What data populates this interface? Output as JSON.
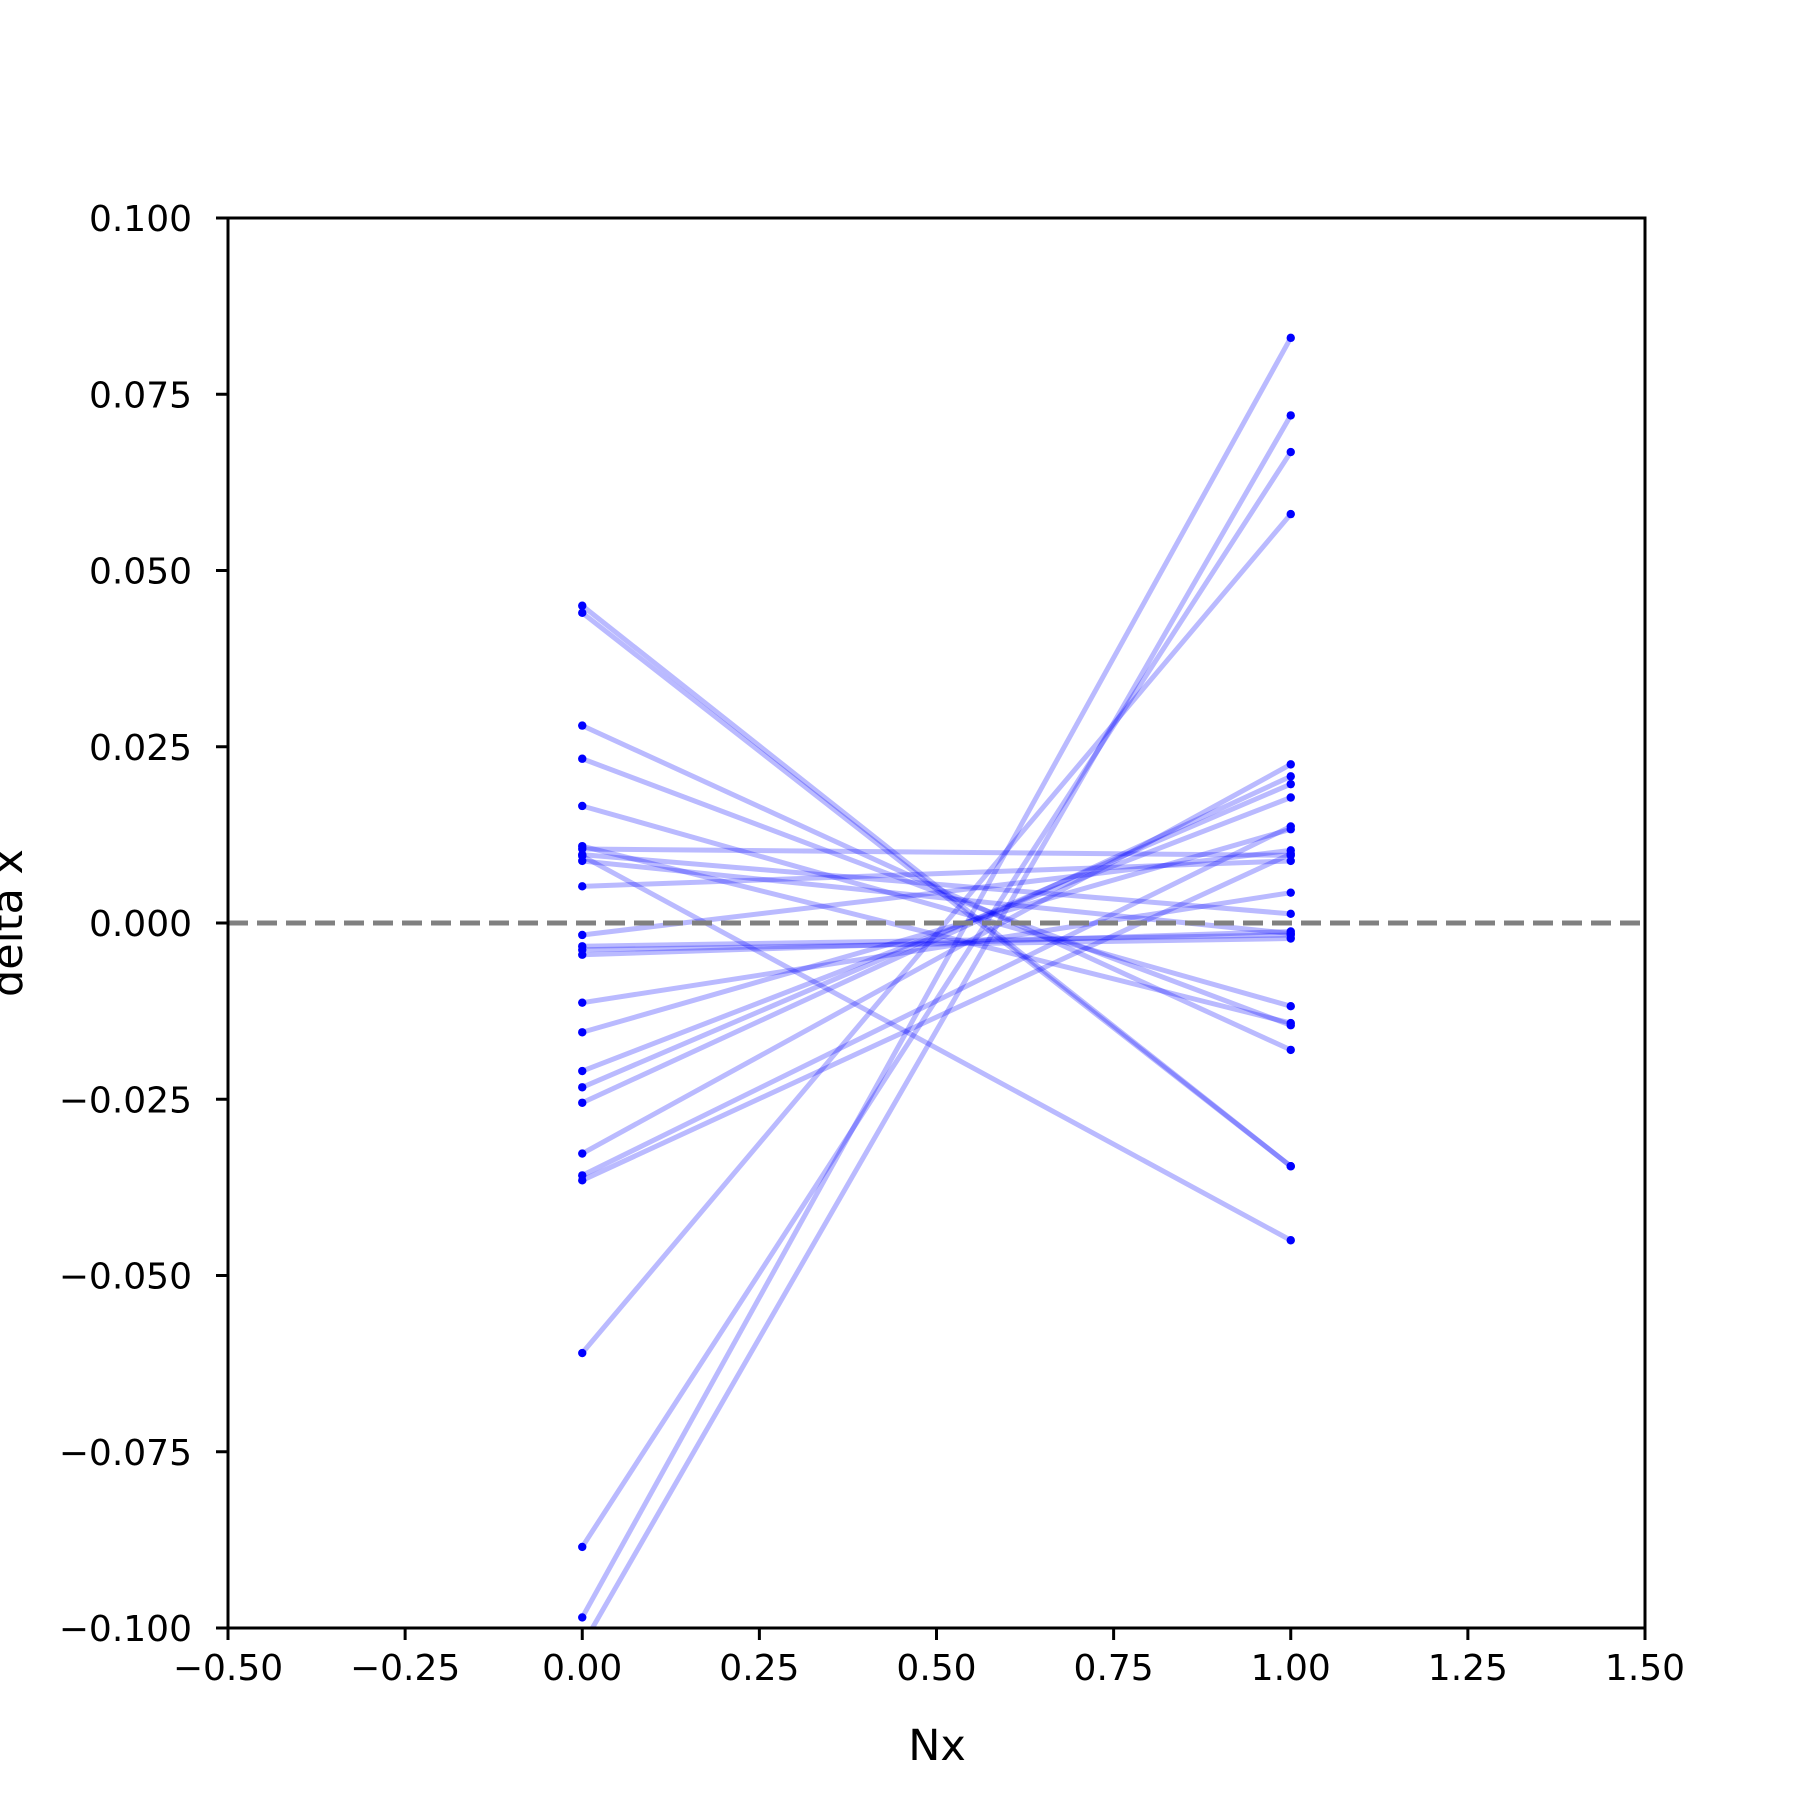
{
  "chart_data": {
    "type": "line",
    "title": "",
    "xlabel": "Nx",
    "ylabel": "delta x",
    "xlim": [
      -0.5,
      1.5
    ],
    "ylim": [
      -0.1,
      0.1
    ],
    "x_ticks": [
      -0.5,
      -0.25,
      0.0,
      0.25,
      0.5,
      0.75,
      1.0,
      1.25,
      1.5
    ],
    "x_tick_labels": [
      "−0.50",
      "−0.25",
      "0.00",
      "0.25",
      "0.50",
      "0.75",
      "1.00",
      "1.25",
      "1.50"
    ],
    "y_ticks": [
      0.1,
      0.075,
      0.05,
      0.025,
      0.0,
      -0.025,
      -0.05,
      -0.075,
      -0.1
    ],
    "y_tick_labels": [
      "0.100",
      "0.075",
      "0.050",
      "0.025",
      "0.000",
      "−0.025",
      "−0.050",
      "−0.075",
      "−0.100"
    ],
    "grid": false,
    "reference_line": {
      "y": 0.0,
      "style": "dashed",
      "color": "#808080"
    },
    "line_color": "#0000ff",
    "line_alpha": 0.27,
    "marker_color": "#0000ff",
    "x": [
      0,
      1
    ],
    "pairs": [
      [
        0.045,
        -0.0345
      ],
      [
        0.044,
        -0.0345
      ],
      [
        0.028,
        -0.018
      ],
      [
        0.0233,
        -0.0145
      ],
      [
        0.0166,
        -0.0118
      ],
      [
        0.0109,
        -0.0142
      ],
      [
        0.0105,
        0.0096
      ],
      [
        0.0097,
        0.0013
      ],
      [
        0.0088,
        -0.0015
      ],
      [
        0.0052,
        0.0088
      ],
      [
        -0.0017,
        0.0103
      ],
      [
        -0.0033,
        -0.0017
      ],
      [
        -0.0038,
        -0.0022
      ],
      [
        -0.0045,
        -0.0012
      ],
      [
        -0.0113,
        0.0043
      ],
      [
        -0.0155,
        0.0133
      ],
      [
        -0.021,
        0.0178
      ],
      [
        -0.0233,
        0.0197
      ],
      [
        -0.0255,
        0.0208
      ],
      [
        -0.0327,
        0.0225
      ],
      [
        -0.0358,
        0.0137
      ],
      [
        -0.0365,
        0.0098
      ],
      [
        -0.061,
        0.058
      ],
      [
        -0.0885,
        0.0668
      ],
      [
        -0.0985,
        0.083
      ],
      [
        -0.1025,
        0.072
      ],
      [
        0.0095,
        -0.045
      ]
    ]
  }
}
